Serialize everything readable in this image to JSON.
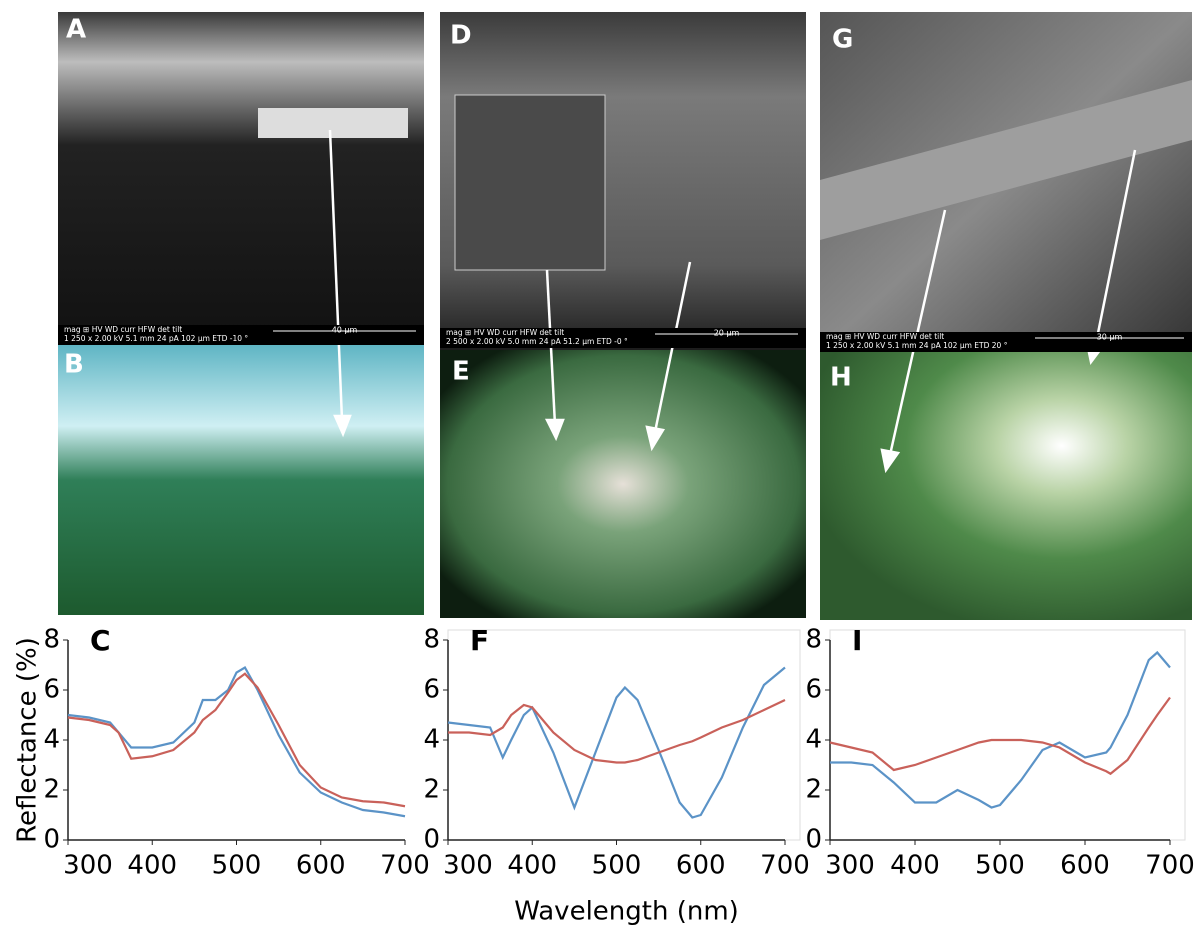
{
  "panels": [
    {
      "label": "A",
      "info": [
        "mag ⊞   HV    WD    curr   HFW   det  tilt",
        "1 250 x 2.00 kV 5.1 mm 24 pA 102 µm ETD -10 °"
      ],
      "scale": "40 µm"
    },
    {
      "label": "B"
    },
    {
      "label": "D",
      "info": [
        "mag ⊞   HV    WD    curr   HFW   det  tilt",
        "2 500 x 2.00 kV 5.0 mm 24 pA 51.2 µm ETD -0 °"
      ],
      "scale": "20 µm"
    },
    {
      "label": "E"
    },
    {
      "label": "G",
      "info": [
        "mag ⊞   HV    WD    curr   HFW   det  tilt",
        "1 250 x 2.00 kV 5.1 mm 24 pA 102 µm ETD 20 °"
      ],
      "scale": "30 µm"
    },
    {
      "label": "H"
    }
  ],
  "chart_data": [
    {
      "type": "line",
      "title": "C",
      "y_label": "Reflectance (%)",
      "x": [
        300,
        325,
        350,
        360,
        375,
        400,
        425,
        450,
        460,
        475,
        490,
        500,
        510,
        525,
        550,
        575,
        600,
        625,
        650,
        675,
        700
      ],
      "series": [
        {
          "color": "#5b93c7",
          "values": [
            5.0,
            4.9,
            4.7,
            4.3,
            3.7,
            3.7,
            3.9,
            4.7,
            5.6,
            5.6,
            6.0,
            6.7,
            6.9,
            6.0,
            4.2,
            2.7,
            1.9,
            1.5,
            1.2,
            1.1,
            0.95
          ]
        },
        {
          "color": "#c9615a",
          "values": [
            4.9,
            4.8,
            4.6,
            4.3,
            3.25,
            3.35,
            3.6,
            4.3,
            4.8,
            5.2,
            5.9,
            6.4,
            6.65,
            6.1,
            4.6,
            3.0,
            2.1,
            1.7,
            1.55,
            1.5,
            1.35
          ]
        }
      ],
      "xlim": [
        300,
        700
      ],
      "xticks": [
        300,
        400,
        500,
        600,
        700
      ],
      "ylim": [
        0,
        8
      ],
      "yticks": [
        0,
        2,
        4,
        6,
        8
      ]
    },
    {
      "type": "line",
      "title": "F",
      "x_label": "Wavelength (nm)",
      "x": [
        300,
        325,
        350,
        365,
        375,
        390,
        400,
        425,
        450,
        475,
        500,
        510,
        525,
        550,
        575,
        590,
        600,
        625,
        650,
        675,
        700
      ],
      "series": [
        {
          "color": "#5b93c7",
          "values": [
            4.7,
            4.6,
            4.5,
            3.3,
            4.0,
            5.0,
            5.3,
            3.5,
            1.3,
            3.5,
            5.7,
            6.1,
            5.6,
            3.6,
            1.5,
            0.9,
            1.0,
            2.5,
            4.5,
            6.2,
            6.9
          ]
        },
        {
          "color": "#c9615a",
          "values": [
            4.3,
            4.3,
            4.2,
            4.5,
            5.0,
            5.4,
            5.3,
            4.3,
            3.6,
            3.2,
            3.1,
            3.1,
            3.2,
            3.5,
            3.8,
            3.95,
            4.1,
            4.5,
            4.8,
            5.2,
            5.6
          ]
        }
      ],
      "xlim": [
        300,
        700
      ],
      "xticks": [
        300,
        400,
        500,
        600,
        700
      ],
      "ylim": [
        0,
        8
      ],
      "yticks": [
        0,
        2,
        4,
        6,
        8
      ]
    },
    {
      "type": "line",
      "title": "I",
      "x": [
        300,
        325,
        350,
        375,
        400,
        425,
        450,
        475,
        490,
        500,
        525,
        550,
        570,
        590,
        600,
        625,
        630,
        650,
        675,
        685,
        700
      ],
      "series": [
        {
          "color": "#5b93c7",
          "values": [
            3.1,
            3.1,
            3.0,
            2.3,
            1.5,
            1.5,
            2.0,
            1.6,
            1.3,
            1.4,
            2.4,
            3.6,
            3.9,
            3.5,
            3.3,
            3.5,
            3.7,
            5.0,
            7.2,
            7.5,
            6.9
          ]
        },
        {
          "color": "#c9615a",
          "values": [
            3.9,
            3.7,
            3.5,
            2.8,
            3.0,
            3.3,
            3.6,
            3.9,
            4.0,
            4.0,
            4.0,
            3.9,
            3.7,
            3.3,
            3.1,
            2.75,
            2.65,
            3.2,
            4.5,
            5.0,
            5.7
          ]
        }
      ],
      "xlim": [
        300,
        700
      ],
      "xticks": [
        300,
        400,
        500,
        600,
        700
      ],
      "ylim": [
        0,
        8
      ],
      "yticks": [
        0,
        2,
        4,
        6,
        8
      ]
    }
  ]
}
